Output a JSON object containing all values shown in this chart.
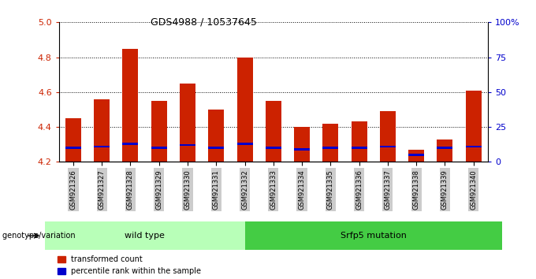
{
  "title": "GDS4988 / 10537645",
  "samples": [
    "GSM921326",
    "GSM921327",
    "GSM921328",
    "GSM921329",
    "GSM921330",
    "GSM921331",
    "GSM921332",
    "GSM921333",
    "GSM921334",
    "GSM921335",
    "GSM921336",
    "GSM921337",
    "GSM921338",
    "GSM921339",
    "GSM921340"
  ],
  "transformed_count": [
    4.45,
    4.56,
    4.85,
    4.55,
    4.65,
    4.5,
    4.8,
    4.55,
    4.4,
    4.42,
    4.43,
    4.49,
    4.27,
    4.33,
    4.61
  ],
  "percentile_rank": [
    10,
    11,
    13,
    10,
    12,
    10,
    13,
    10,
    9,
    10,
    10,
    11,
    5,
    10,
    11
  ],
  "y_min": 4.2,
  "y_max": 5.0,
  "y_ticks": [
    4.2,
    4.4,
    4.6,
    4.8,
    5.0
  ],
  "right_y_ticks": [
    0,
    25,
    50,
    75,
    100
  ],
  "right_y_labels": [
    "0",
    "25",
    "50",
    "75",
    "100%"
  ],
  "groups": [
    {
      "label": "wild type",
      "start": 0,
      "end": 7,
      "color": "#b8f0b8"
    },
    {
      "label": "Srfp5 mutation",
      "start": 7,
      "end": 15,
      "color": "#44cc44"
    }
  ],
  "bar_color_red": "#cc2200",
  "bar_color_blue": "#0000cc",
  "bar_width": 0.55,
  "background_color": "#ffffff",
  "tick_label_color_left": "#cc2200",
  "tick_label_color_right": "#0000cc",
  "legend_label_red": "transformed count",
  "legend_label_blue": "percentile rank within the sample",
  "genotype_label": "genotype/variation"
}
